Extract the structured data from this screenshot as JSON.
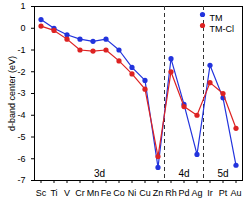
{
  "chart_data": {
    "type": "line",
    "ylabel": "d-band center (eV)",
    "categories": [
      "Sc",
      "Ti",
      "V",
      "Cr",
      "Mn",
      "Fe",
      "Co",
      "Ni",
      "Cu",
      "Zn",
      "Rh",
      "Pd",
      "Ag",
      "Ir",
      "Pt",
      "Au"
    ],
    "series": [
      {
        "name": "TM",
        "color": "#2233dd",
        "marker": "circle",
        "line_style": "solid",
        "values": [
          0.4,
          0.0,
          -0.3,
          -0.5,
          -0.6,
          -0.5,
          -1.0,
          -1.8,
          -2.4,
          -6.4,
          -1.4,
          -3.5,
          -5.8,
          -1.7,
          -3.2,
          -6.3
        ]
      },
      {
        "name": "TM-Cl",
        "color": "#dd2222",
        "marker": "circle",
        "line_style": "solid",
        "values": [
          0.1,
          -0.1,
          -0.5,
          -1.0,
          -1.05,
          -1.0,
          -1.5,
          -2.1,
          -2.8,
          -5.9,
          -2.0,
          -3.6,
          -4.0,
          -2.5,
          -3.0,
          -4.6
        ]
      }
    ],
    "groups": [
      {
        "label": "3d",
        "first": "Sc",
        "last": "Zn"
      },
      {
        "label": "4d",
        "first": "Rh",
        "last": "Ag"
      },
      {
        "label": "5d",
        "first": "Ir",
        "last": "Au"
      }
    ],
    "ylim": [
      -7,
      1
    ],
    "yticks": [
      -7,
      -6,
      -5,
      -4,
      -3,
      -2,
      -1,
      0,
      1
    ],
    "legend": "top-right",
    "grid": false
  }
}
